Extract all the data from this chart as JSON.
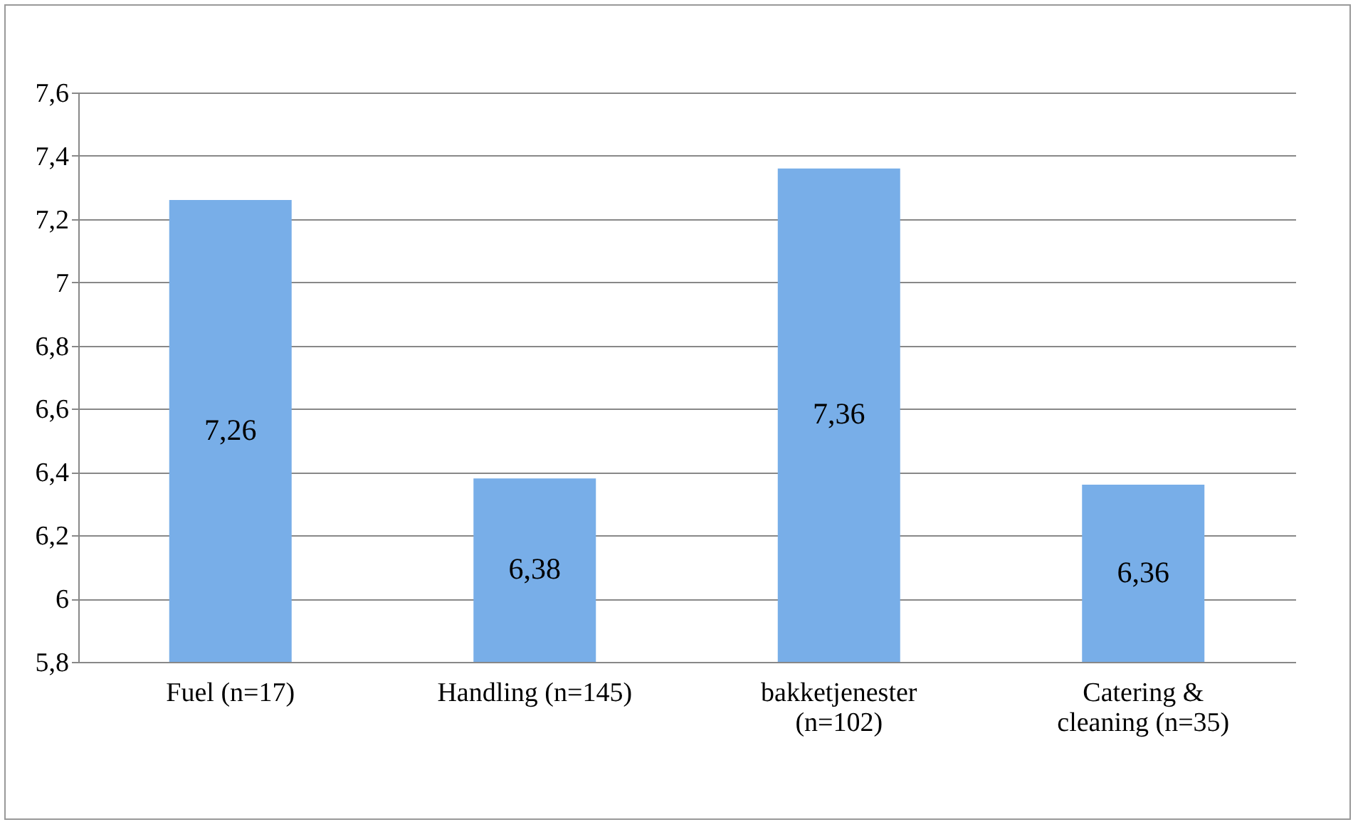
{
  "chart_data": {
    "type": "bar",
    "categories": [
      "Fuel (n=17)",
      "Handling (n=145)",
      "bakketjenester (n=102)",
      "Catering & cleaning (n=35)"
    ],
    "values": [
      7.26,
      6.38,
      7.36,
      6.36
    ],
    "value_labels": [
      "7,26",
      "6,38",
      "7,36",
      "6,36"
    ],
    "color": "#78aee8",
    "ylim": [
      5.8,
      7.6
    ],
    "yticks": [
      {
        "value": 5.8,
        "label": "5,8"
      },
      {
        "value": 6,
        "label": "6"
      },
      {
        "value": 6.2,
        "label": "6,2"
      },
      {
        "value": 6.4,
        "label": "6,4"
      },
      {
        "value": 6.6,
        "label": "6,6"
      },
      {
        "value": 6.8,
        "label": "6,8"
      },
      {
        "value": 7,
        "label": "7"
      },
      {
        "value": 7.2,
        "label": "7,2"
      },
      {
        "value": 7.4,
        "label": "7,4"
      },
      {
        "value": 7.6,
        "label": "7,6"
      }
    ],
    "grid": "y"
  }
}
